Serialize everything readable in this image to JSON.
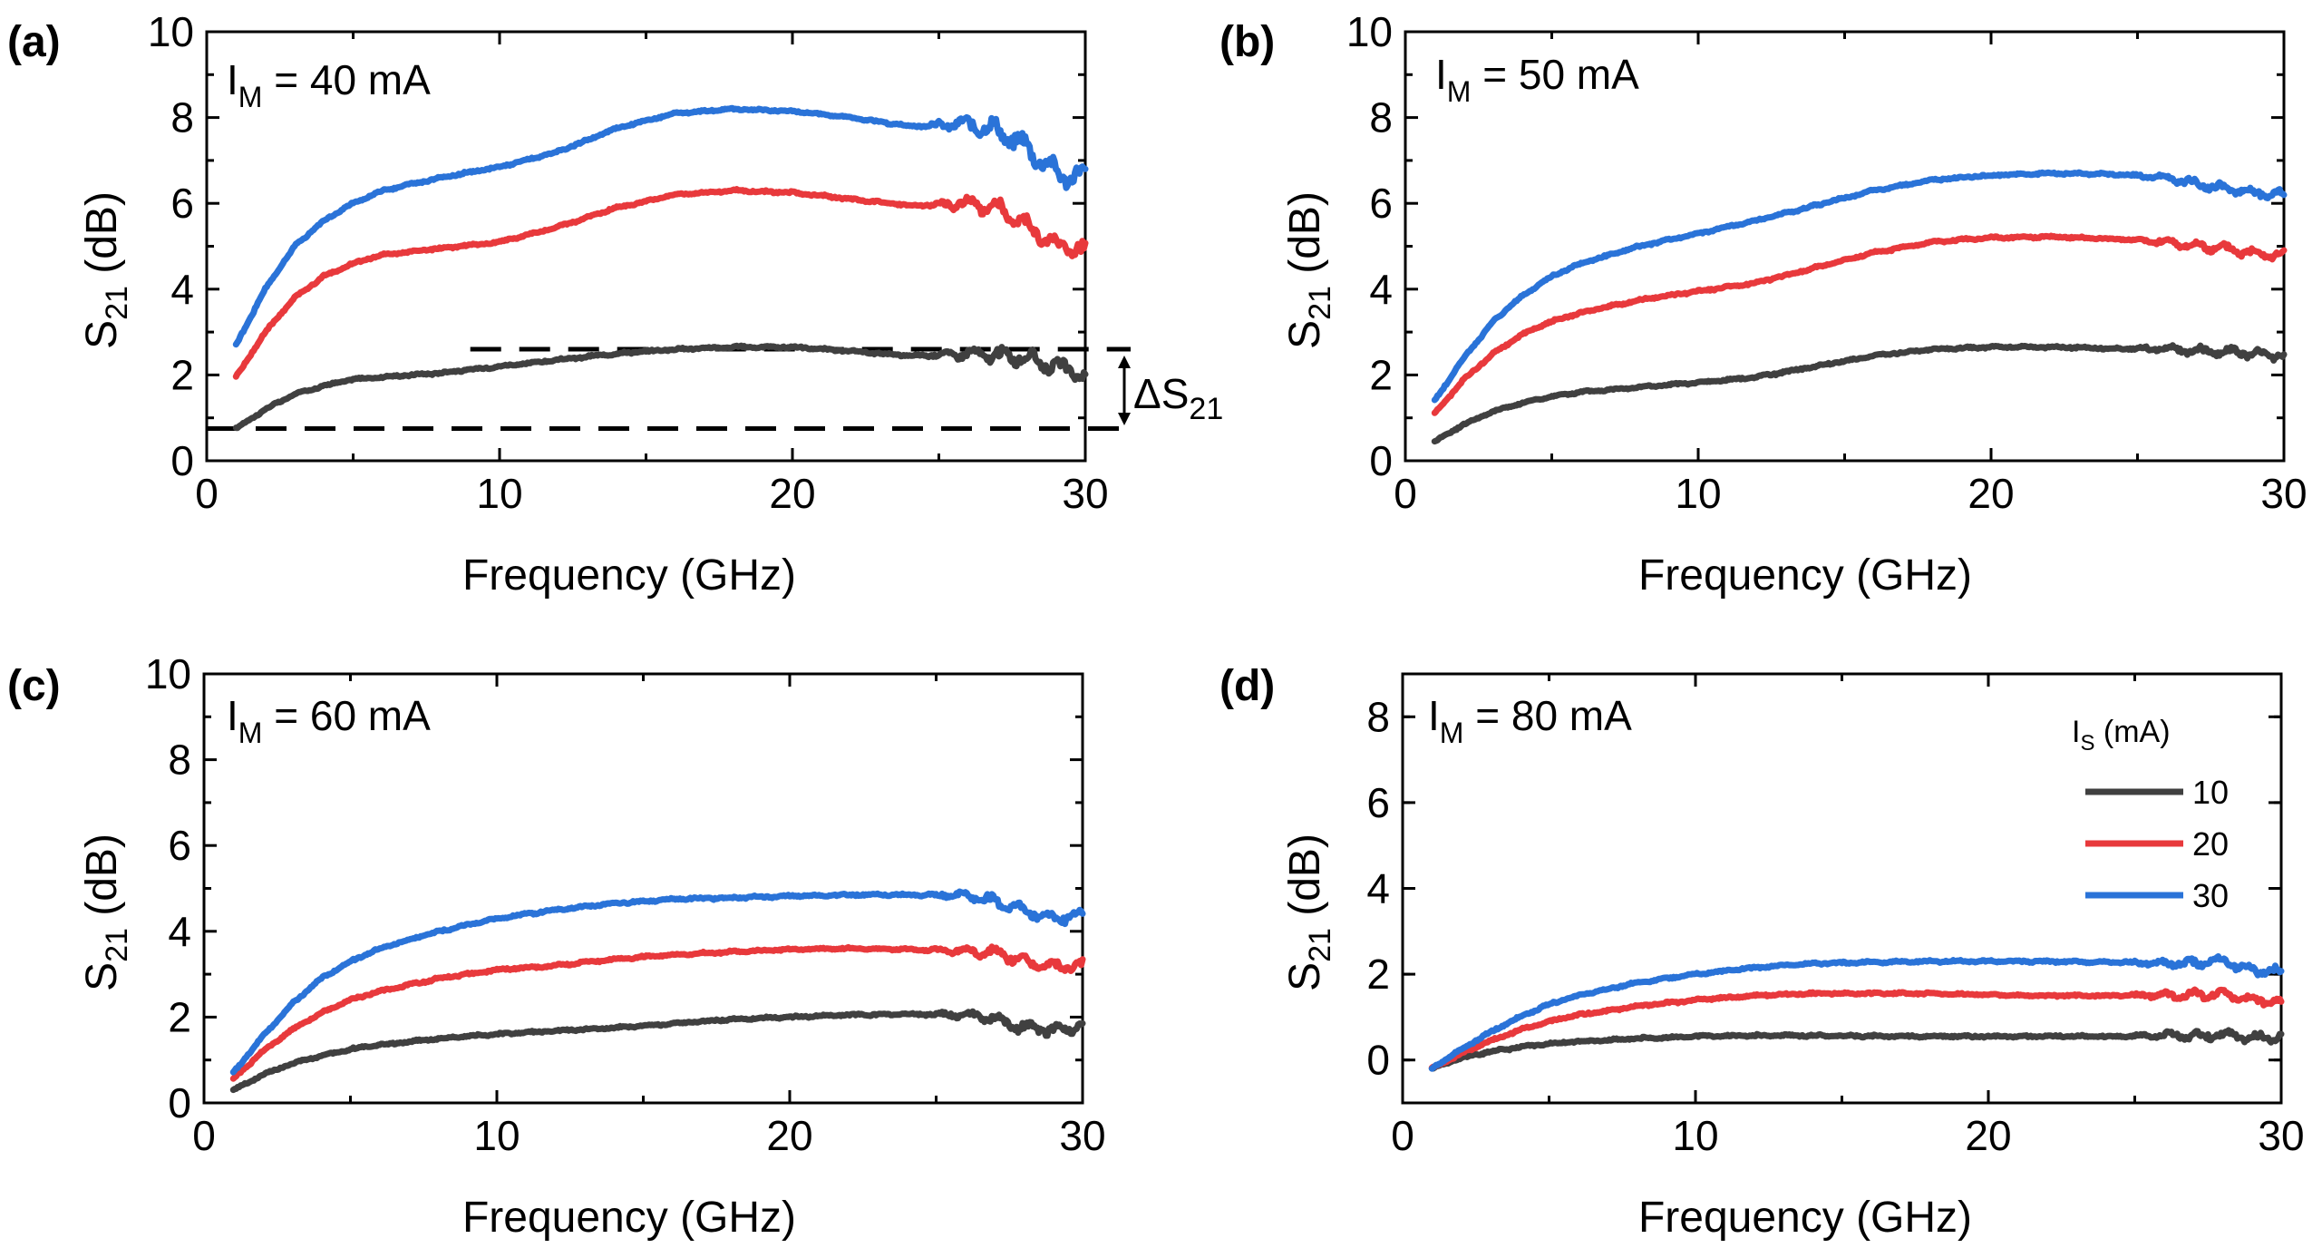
{
  "figure": {
    "legend": {
      "title_main": "I",
      "title_sub": "S",
      "title_rest": " (mA)",
      "entries": [
        {
          "label": "10",
          "color": "#404040"
        },
        {
          "label": "20",
          "color": "#e8393c"
        },
        {
          "label": "30",
          "color": "#2a73d8"
        }
      ]
    },
    "delta_label": {
      "symbol": "ΔS",
      "sub": "21"
    }
  },
  "chart_data": [
    {
      "type": "line",
      "panel": "(a)",
      "annotation_main": "I",
      "annotation_sub": "M",
      "annotation_rest": " = 40 mA",
      "xlabel": "Frequency (GHz)",
      "ylabel_main": "S",
      "ylabel_sub": "21",
      "ylabel_rest": " (dB)",
      "xlim": [
        0,
        30
      ],
      "ylim": [
        0,
        10
      ],
      "xticks": [
        "0",
        "10",
        "20",
        "30"
      ],
      "yticks": [
        "0",
        "2",
        "4",
        "6",
        "8",
        "10"
      ],
      "dashed_lines": [
        {
          "y": 2.6,
          "x_start": 9
        },
        {
          "y": 0.75,
          "x_start": 0
        }
      ],
      "series": [
        {
          "name": "10",
          "color": "#404040",
          "ripple": 0.2,
          "x": [
            1,
            2,
            3,
            4,
            5,
            6,
            8,
            10,
            12,
            14,
            16,
            18,
            20,
            22,
            24,
            26,
            27,
            28,
            29,
            30
          ],
          "y": [
            0.75,
            1.2,
            1.55,
            1.75,
            1.9,
            1.95,
            2.05,
            2.2,
            2.35,
            2.5,
            2.6,
            2.65,
            2.65,
            2.55,
            2.45,
            2.5,
            2.45,
            2.4,
            2.2,
            2.0
          ]
        },
        {
          "name": "20",
          "color": "#e8393c",
          "ripple": 0.25,
          "x": [
            1,
            2,
            3,
            4,
            5,
            6,
            8,
            10,
            12,
            14,
            16,
            18,
            20,
            22,
            24,
            26,
            27,
            28,
            29,
            30
          ],
          "y": [
            1.95,
            3.0,
            3.8,
            4.3,
            4.6,
            4.8,
            4.95,
            5.1,
            5.45,
            5.9,
            6.2,
            6.3,
            6.25,
            6.1,
            5.95,
            6.0,
            5.9,
            5.5,
            5.0,
            4.9
          ]
        },
        {
          "name": "30",
          "color": "#2a73d8",
          "ripple": 0.3,
          "x": [
            1,
            2,
            3,
            4,
            5,
            6,
            8,
            10,
            12,
            14,
            16,
            18,
            20,
            22,
            24,
            26,
            27,
            28,
            29,
            30
          ],
          "y": [
            2.7,
            4.0,
            5.0,
            5.6,
            6.0,
            6.3,
            6.6,
            6.85,
            7.2,
            7.75,
            8.1,
            8.2,
            8.15,
            8.0,
            7.8,
            7.85,
            7.7,
            7.3,
            6.7,
            6.6
          ]
        }
      ]
    },
    {
      "type": "line",
      "panel": "(b)",
      "annotation_main": "I",
      "annotation_sub": "M",
      "annotation_rest": " = 50 mA",
      "xlabel": "Frequency (GHz)",
      "ylabel_main": "S",
      "ylabel_sub": "21",
      "ylabel_rest": " (dB)",
      "xlim": [
        0,
        30
      ],
      "ylim": [
        0,
        10
      ],
      "xticks": [
        "0",
        "10",
        "20",
        "30"
      ],
      "yticks": [
        "0",
        "2",
        "4",
        "6",
        "8",
        "10"
      ],
      "series": [
        {
          "name": "10",
          "color": "#404040",
          "ripple": 0.12,
          "x": [
            1,
            2,
            3,
            4,
            5,
            6,
            8,
            10,
            12,
            14,
            16,
            18,
            20,
            22,
            24,
            26,
            27,
            28,
            29,
            30
          ],
          "y": [
            0.45,
            0.85,
            1.15,
            1.35,
            1.5,
            1.6,
            1.72,
            1.82,
            1.95,
            2.2,
            2.45,
            2.6,
            2.65,
            2.65,
            2.62,
            2.6,
            2.55,
            2.55,
            2.5,
            2.45
          ]
        },
        {
          "name": "20",
          "color": "#e8393c",
          "ripple": 0.12,
          "x": [
            1,
            2,
            3,
            4,
            5,
            6,
            8,
            10,
            12,
            14,
            16,
            18,
            20,
            22,
            24,
            26,
            27,
            28,
            29,
            30
          ],
          "y": [
            1.1,
            1.9,
            2.5,
            2.95,
            3.25,
            3.45,
            3.75,
            3.95,
            4.15,
            4.5,
            4.85,
            5.1,
            5.2,
            5.22,
            5.18,
            5.1,
            5.0,
            4.95,
            4.85,
            4.8
          ]
        },
        {
          "name": "30",
          "color": "#2a73d8",
          "ripple": 0.12,
          "x": [
            1,
            2,
            3,
            4,
            5,
            6,
            8,
            10,
            12,
            14,
            16,
            18,
            20,
            22,
            24,
            26,
            27,
            28,
            29,
            30
          ],
          "y": [
            1.4,
            2.4,
            3.25,
            3.85,
            4.3,
            4.6,
            5.0,
            5.3,
            5.6,
            5.95,
            6.3,
            6.55,
            6.65,
            6.7,
            6.68,
            6.6,
            6.45,
            6.35,
            6.25,
            6.2
          ]
        }
      ]
    },
    {
      "type": "line",
      "panel": "(c)",
      "annotation_main": "I",
      "annotation_sub": "M",
      "annotation_rest": " = 60 mA",
      "xlabel": "Frequency (GHz)",
      "ylabel_main": "S",
      "ylabel_sub": "21",
      "ylabel_rest": " (dB)",
      "xlim": [
        0,
        30
      ],
      "ylim": [
        0,
        10
      ],
      "xticks": [
        "0",
        "10",
        "20",
        "30"
      ],
      "yticks": [
        "0",
        "2",
        "4",
        "6",
        "8",
        "10"
      ],
      "series": [
        {
          "name": "10",
          "color": "#404040",
          "ripple": 0.15,
          "x": [
            1,
            2,
            3,
            4,
            5,
            6,
            8,
            10,
            12,
            14,
            16,
            18,
            20,
            22,
            24,
            26,
            27,
            28,
            29,
            30
          ],
          "y": [
            0.3,
            0.65,
            0.92,
            1.1,
            1.25,
            1.35,
            1.5,
            1.6,
            1.68,
            1.75,
            1.85,
            1.95,
            2.0,
            2.05,
            2.07,
            2.05,
            1.95,
            1.75,
            1.7,
            1.8
          ]
        },
        {
          "name": "20",
          "color": "#e8393c",
          "ripple": 0.15,
          "x": [
            1,
            2,
            3,
            4,
            5,
            6,
            8,
            10,
            12,
            14,
            16,
            18,
            20,
            22,
            24,
            26,
            27,
            28,
            29,
            30
          ],
          "y": [
            0.55,
            1.2,
            1.7,
            2.1,
            2.4,
            2.6,
            2.9,
            3.1,
            3.2,
            3.35,
            3.45,
            3.52,
            3.58,
            3.6,
            3.58,
            3.55,
            3.5,
            3.3,
            3.15,
            3.2
          ]
        },
        {
          "name": "30",
          "color": "#2a73d8",
          "ripple": 0.15,
          "x": [
            1,
            2,
            3,
            4,
            5,
            6,
            8,
            10,
            12,
            14,
            16,
            18,
            20,
            22,
            24,
            26,
            27,
            28,
            29,
            30
          ],
          "y": [
            0.7,
            1.55,
            2.3,
            2.9,
            3.3,
            3.6,
            4.0,
            4.3,
            4.5,
            4.65,
            4.75,
            4.78,
            4.82,
            4.85,
            4.85,
            4.85,
            4.7,
            4.5,
            4.3,
            4.4
          ]
        }
      ]
    },
    {
      "type": "line",
      "panel": "(d)",
      "annotation_main": "I",
      "annotation_sub": "M",
      "annotation_rest": " = 80 mA",
      "xlabel": "Frequency (GHz)",
      "ylabel_main": "S",
      "ylabel_sub": "21",
      "ylabel_rest": " (dB)",
      "xlim": [
        0,
        30
      ],
      "ylim": [
        -1,
        9
      ],
      "xticks": [
        "0",
        "10",
        "20",
        "30"
      ],
      "yticks": [
        "0",
        "2",
        "4",
        "6",
        "8"
      ],
      "series": [
        {
          "name": "10",
          "color": "#404040",
          "ripple": 0.12,
          "x": [
            1,
            2,
            3,
            4,
            5,
            6,
            8,
            10,
            12,
            14,
            16,
            18,
            20,
            22,
            24,
            26,
            27,
            28,
            29,
            30
          ],
          "y": [
            -0.2,
            0.05,
            0.2,
            0.3,
            0.38,
            0.43,
            0.5,
            0.55,
            0.57,
            0.57,
            0.56,
            0.55,
            0.55,
            0.55,
            0.55,
            0.58,
            0.55,
            0.6,
            0.5,
            0.55
          ]
        },
        {
          "name": "20",
          "color": "#e8393c",
          "ripple": 0.12,
          "x": [
            1,
            2,
            3,
            4,
            5,
            6,
            8,
            10,
            12,
            14,
            16,
            18,
            20,
            22,
            24,
            26,
            27,
            28,
            29,
            30
          ],
          "y": [
            -0.2,
            0.15,
            0.45,
            0.7,
            0.9,
            1.05,
            1.25,
            1.4,
            1.5,
            1.55,
            1.55,
            1.55,
            1.52,
            1.5,
            1.5,
            1.52,
            1.5,
            1.55,
            1.4,
            1.35
          ]
        },
        {
          "name": "30",
          "color": "#2a73d8",
          "ripple": 0.12,
          "x": [
            1,
            2,
            3,
            4,
            5,
            6,
            8,
            10,
            12,
            14,
            16,
            18,
            20,
            22,
            24,
            26,
            27,
            28,
            29,
            30
          ],
          "y": [
            -0.2,
            0.25,
            0.65,
            1.0,
            1.3,
            1.5,
            1.8,
            2.0,
            2.15,
            2.25,
            2.28,
            2.3,
            2.3,
            2.3,
            2.28,
            2.25,
            2.25,
            2.3,
            2.1,
            2.05
          ]
        }
      ]
    }
  ]
}
